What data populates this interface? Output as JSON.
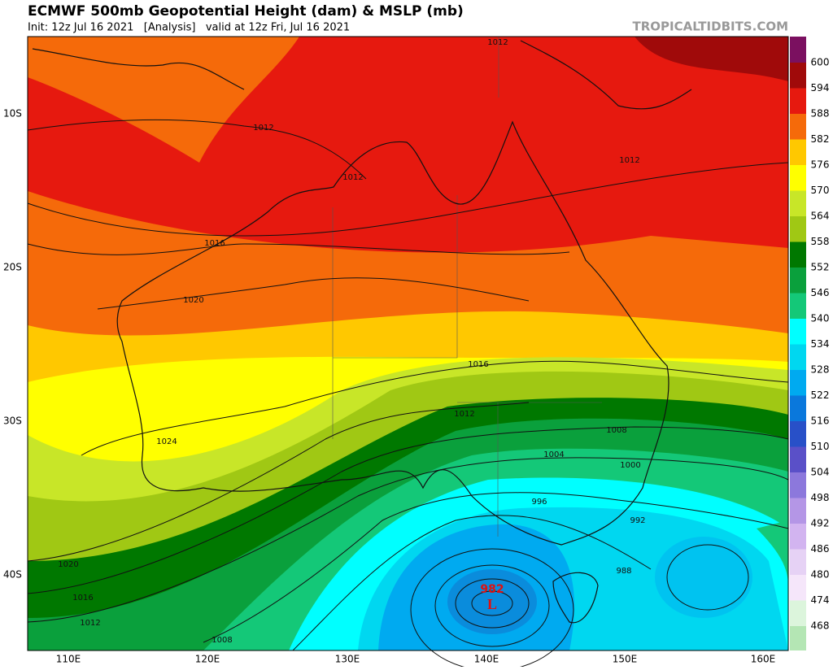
{
  "header": {
    "title": "ECMWF 500mb Geopotential Height (dam) & MSLP (mb)",
    "init": "Init: 12z Jul 16 2021   [Analysis]   valid at 12z Fri, Jul 16 2021",
    "site": "TROPICALTIDBITS.COM"
  },
  "axes": {
    "lat_labels": [
      "10S",
      "20S",
      "30S",
      "40S"
    ],
    "lon_labels": [
      "110E",
      "120E",
      "130E",
      "140E",
      "150E",
      "160E"
    ]
  },
  "colorbar": {
    "labels": [
      600,
      594,
      588,
      582,
      576,
      570,
      564,
      558,
      552,
      546,
      540,
      534,
      528,
      522,
      516,
      510,
      504,
      498,
      492,
      486,
      480,
      474,
      468
    ]
  },
  "isobar_labels": [
    "1012",
    "1012",
    "1012",
    "1016",
    "1020",
    "1016",
    "1012",
    "1024",
    "1008",
    "1004",
    "1000",
    "996",
    "992",
    "988",
    "1020",
    "1016",
    "1012",
    "1008",
    "1012"
  ],
  "low": {
    "pressure": "982",
    "symbol": "L"
  }
}
